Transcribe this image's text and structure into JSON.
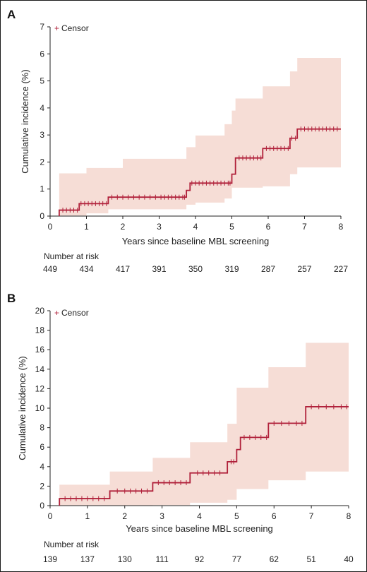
{
  "chart_data": [
    {
      "panel_label": "A",
      "type": "step",
      "xlabel": "Years since baseline MBL screening",
      "ylabel": "Cumulative incidence (%)",
      "xlim": [
        0,
        8
      ],
      "ylim": [
        0,
        7
      ],
      "xticks": [
        "0",
        "1",
        "2",
        "3",
        "4",
        "5",
        "6",
        "7",
        "8"
      ],
      "yticks": [
        "0",
        "1",
        "2",
        "3",
        "4",
        "5",
        "6",
        "7"
      ],
      "legend": {
        "marker": "+",
        "label": "Censor",
        "position": "top-left"
      },
      "line_color": "#b0203a",
      "band_color": "#f6ddd6",
      "curve": {
        "x": [
          0.25,
          0.8,
          1.6,
          3.75,
          3.85,
          5.0,
          5.1,
          5.85,
          6.6,
          6.8,
          8.0
        ],
        "y": [
          0.22,
          0.46,
          0.7,
          0.95,
          1.22,
          1.55,
          2.15,
          2.5,
          2.88,
          3.22,
          3.22
        ]
      },
      "ci_upper": {
        "x": [
          0,
          0.25,
          1.0,
          2.0,
          3.75,
          4.0,
          4.8,
          5.0,
          5.1,
          5.85,
          6.6,
          6.8
        ],
        "y": [
          0,
          1.58,
          1.78,
          2.12,
          2.55,
          2.98,
          3.4,
          3.9,
          4.35,
          4.8,
          5.35,
          5.85
        ]
      },
      "ci_lower": {
        "x": [
          0,
          0.25,
          1.0,
          1.6,
          3.75,
          4.0,
          4.8,
          5.0,
          5.85,
          6.6,
          6.8
        ],
        "y": [
          0,
          0.02,
          0.1,
          0.25,
          0.42,
          0.5,
          0.65,
          1.05,
          1.1,
          1.55,
          1.8
        ]
      },
      "censor_x": [
        0.35,
        0.45,
        0.55,
        0.65,
        0.75,
        0.85,
        0.95,
        1.05,
        1.15,
        1.25,
        1.35,
        1.45,
        1.55,
        1.7,
        1.85,
        2.0,
        2.15,
        2.3,
        2.45,
        2.6,
        2.75,
        2.9,
        3.05,
        3.15,
        3.25,
        3.35,
        3.45,
        3.55,
        3.65,
        3.7,
        3.9,
        4.0,
        4.1,
        4.2,
        4.3,
        4.4,
        4.5,
        4.6,
        4.7,
        4.8,
        4.9,
        4.95,
        5.2,
        5.3,
        5.4,
        5.5,
        5.6,
        5.7,
        5.8,
        5.95,
        6.05,
        6.15,
        6.25,
        6.35,
        6.45,
        6.55,
        6.65,
        6.75,
        6.9,
        7.0,
        7.1,
        7.2,
        7.3,
        7.4,
        7.5,
        7.6,
        7.7,
        7.8,
        7.9
      ],
      "risk_table": {
        "title": "Number at risk",
        "values": [
          "449",
          "434",
          "417",
          "391",
          "350",
          "319",
          "287",
          "257",
          "227"
        ]
      }
    },
    {
      "panel_label": "B",
      "type": "step",
      "xlabel": "Years since baseline MBL screening",
      "ylabel": "Cumulative incidence (%)",
      "xlim": [
        0,
        8
      ],
      "ylim": [
        0,
        20
      ],
      "xticks": [
        "0",
        "1",
        "2",
        "3",
        "4",
        "5",
        "6",
        "7",
        "8"
      ],
      "yticks": [
        "0",
        "2",
        "4",
        "6",
        "8",
        "10",
        "12",
        "14",
        "16",
        "18",
        "20"
      ],
      "legend": {
        "marker": "+",
        "label": "Censor",
        "position": "top-left"
      },
      "line_color": "#b0203a",
      "band_color": "#f6ddd6",
      "curve": {
        "x": [
          0.25,
          1.6,
          2.75,
          3.75,
          4.75,
          5.0,
          5.1,
          5.85,
          6.85,
          8.0
        ],
        "y": [
          0.72,
          1.5,
          2.35,
          3.35,
          4.5,
          5.75,
          7.0,
          8.45,
          10.15,
          10.15
        ]
      },
      "ci_upper": {
        "x": [
          0,
          0.25,
          1.6,
          2.75,
          3.75,
          4.75,
          5.0,
          5.85,
          6.85
        ],
        "y": [
          0,
          2.15,
          3.5,
          4.9,
          6.5,
          8.4,
          12.1,
          14.2,
          16.7
        ]
      },
      "ci_lower": {
        "x": [
          0,
          0.25,
          2.75,
          3.75,
          4.75,
          5.0,
          5.85,
          6.85
        ],
        "y": [
          0,
          0.0,
          0.05,
          0.3,
          0.6,
          1.7,
          2.6,
          3.5
        ]
      },
      "censor_x": [
        0.4,
        0.55,
        0.7,
        0.85,
        1.0,
        1.15,
        1.3,
        1.45,
        1.8,
        2.0,
        2.15,
        2.3,
        2.45,
        2.6,
        2.9,
        3.05,
        3.2,
        3.35,
        3.5,
        3.65,
        3.95,
        4.1,
        4.25,
        4.4,
        4.55,
        4.85,
        4.92,
        5.2,
        5.35,
        5.5,
        5.65,
        5.8,
        6.0,
        6.2,
        6.4,
        6.6,
        6.75,
        7.0,
        7.2,
        7.4,
        7.6,
        7.8,
        7.95
      ],
      "risk_table": {
        "title": "Number at risk",
        "values": [
          "139",
          "137",
          "130",
          "111",
          "92",
          "77",
          "62",
          "51",
          "40"
        ]
      }
    }
  ]
}
